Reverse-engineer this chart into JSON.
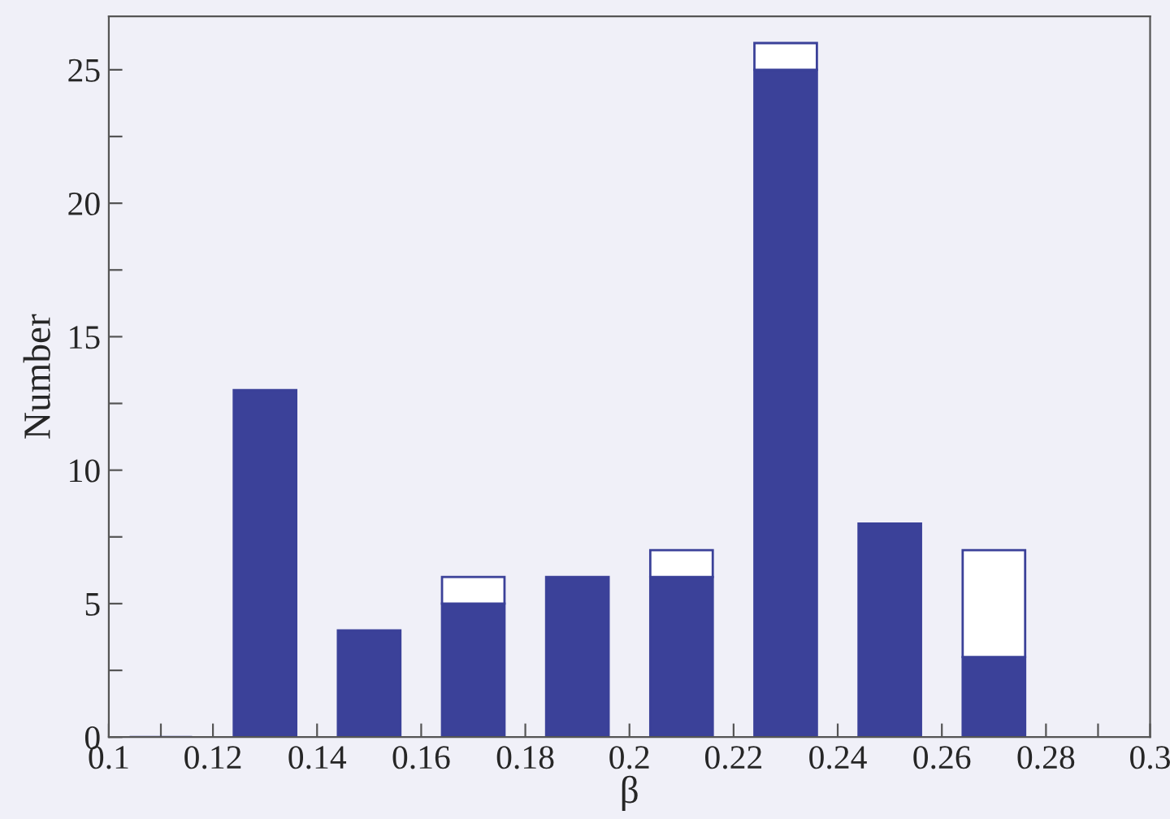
{
  "chart_data": {
    "type": "bar",
    "xlabel": "β",
    "ylabel": "Number",
    "stacked": true,
    "x": [
      0.11,
      0.13,
      0.15,
      0.17,
      0.19,
      0.21,
      0.23,
      0.25,
      0.27
    ],
    "series": [
      {
        "color": "#3b4199",
        "values": [
          0,
          13,
          4,
          5,
          6,
          6,
          25,
          8,
          3
        ]
      },
      {
        "color": "#ffffff",
        "values": [
          0,
          0,
          0,
          1,
          0,
          1,
          1,
          0,
          4
        ]
      }
    ],
    "xlim": [
      0.1,
      0.3
    ],
    "ylim": [
      0,
      27
    ],
    "xticks": [
      {
        "value": 0.1,
        "label": "0.1"
      },
      {
        "value": 0.11,
        "label": null
      },
      {
        "value": 0.12,
        "label": "0.12"
      },
      {
        "value": 0.13,
        "label": null
      },
      {
        "value": 0.14,
        "label": "0.14"
      },
      {
        "value": 0.15,
        "label": null
      },
      {
        "value": 0.16,
        "label": "0.16"
      },
      {
        "value": 0.17,
        "label": null
      },
      {
        "value": 0.18,
        "label": "0.18"
      },
      {
        "value": 0.19,
        "label": null
      },
      {
        "value": 0.2,
        "label": "0.2"
      },
      {
        "value": 0.21,
        "label": null
      },
      {
        "value": 0.22,
        "label": "0.22"
      },
      {
        "value": 0.23,
        "label": null
      },
      {
        "value": 0.24,
        "label": "0.24"
      },
      {
        "value": 0.25,
        "label": null
      },
      {
        "value": 0.26,
        "label": "0.26"
      },
      {
        "value": 0.27,
        "label": null
      },
      {
        "value": 0.28,
        "label": "0.28"
      },
      {
        "value": 0.29,
        "label": null
      },
      {
        "value": 0.3,
        "label": "0.3"
      }
    ],
    "yticks": [
      0,
      {
        "value": 2.5,
        "label": null
      },
      5,
      {
        "value": 7.5,
        "label": null
      },
      10,
      {
        "value": 12.5,
        "label": null
      },
      15,
      {
        "value": 17.5,
        "label": null
      },
      20,
      {
        "value": 22.5,
        "label": null
      },
      25
    ],
    "grid": false,
    "legend": false
  }
}
